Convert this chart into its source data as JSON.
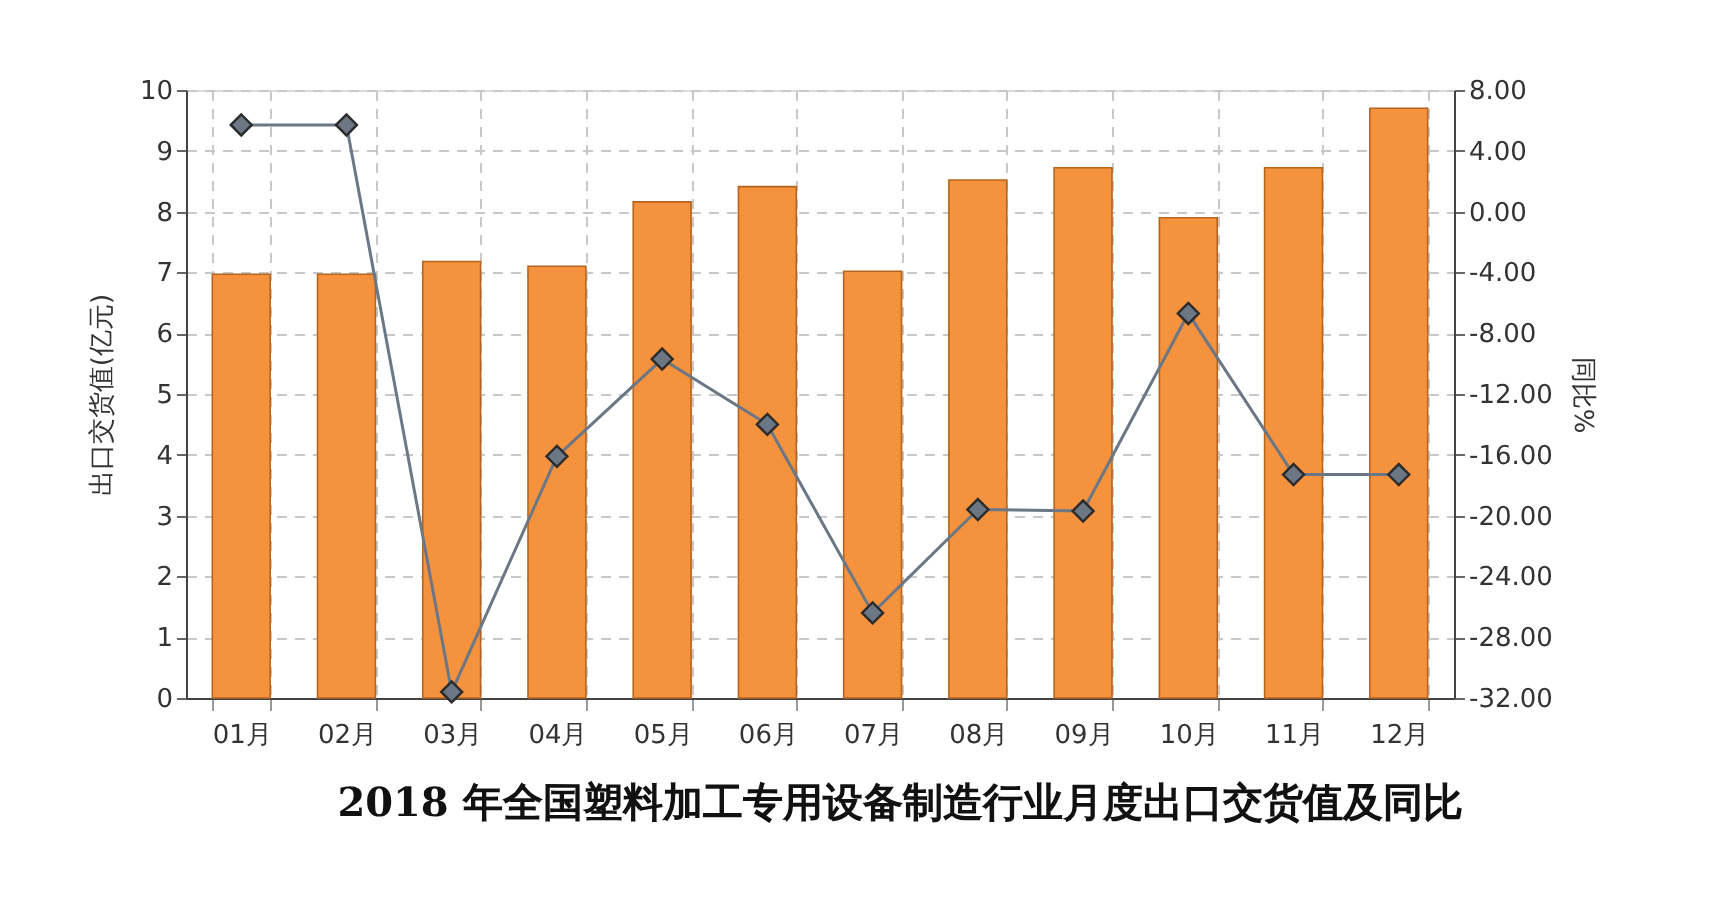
{
  "chart_data": {
    "type": "bar",
    "title": "2018 年全国塑料加工专用设备制造行业月度出口交货值及同比",
    "ylabel": "出口交货值(亿元)",
    "y2label": "同比%",
    "categories": [
      "01月",
      "02月",
      "03月",
      "04月",
      "05月",
      "06月",
      "07月",
      "08月",
      "09月",
      "10月",
      "11月",
      "12月"
    ],
    "series": [
      {
        "color": "#f5923e",
        "values": [
          6.97,
          6.97,
          7.18,
          7.1,
          8.16,
          8.41,
          7.02,
          8.52,
          8.72,
          7.9,
          8.72,
          9.7
        ]
      },
      {
        "type": "line",
        "axis": "y2",
        "color": "#6b7785",
        "values": [
          5.7,
          5.7,
          -31.6,
          -16.1,
          -9.7,
          -14.0,
          -26.4,
          -19.6,
          -19.7,
          -6.7,
          -17.3,
          -17.3
        ]
      }
    ],
    "ylim": [
      0,
      10
    ],
    "yticks": [
      0,
      1,
      2,
      3,
      4,
      5,
      6,
      7,
      8,
      9,
      10
    ],
    "y2lim": [
      -32,
      8
    ],
    "y2ticks": [
      {
        "value": 8,
        "label": "8.00"
      },
      {
        "value": 4,
        "label": "4.00"
      },
      {
        "value": 0,
        "label": "0.00"
      },
      {
        "value": -4,
        "label": "-4.00"
      },
      {
        "value": -8,
        "label": "-8.00"
      },
      {
        "value": -12,
        "label": "-12.00"
      },
      {
        "value": -16,
        "label": "-16.00"
      },
      {
        "value": -20,
        "label": "-20.00"
      },
      {
        "value": -24,
        "label": "-24.00"
      },
      {
        "value": -28,
        "label": "-28.00"
      },
      {
        "value": -32,
        "label": "-32.00"
      }
    ],
    "grid": true,
    "marker": "diamond",
    "line_style": "solid"
  }
}
